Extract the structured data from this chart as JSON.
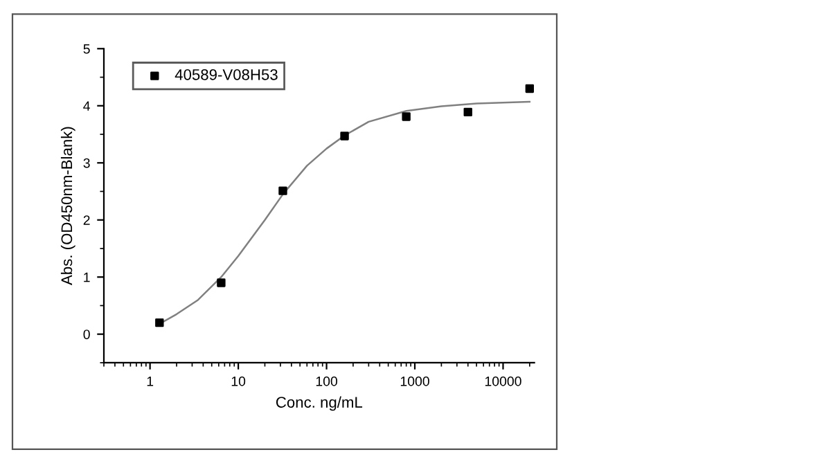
{
  "chart_data": {
    "type": "scatter",
    "xlabel": "Conc. ng/mL",
    "ylabel": "Abs. (OD450nm-Blank)",
    "log": "x",
    "marker": "square",
    "legend": "top left",
    "grid": false,
    "xlim": [
      0.3,
      22600
    ],
    "xticks": [
      1,
      10,
      100,
      1000,
      10000
    ],
    "ylim": [
      -0.5,
      5
    ],
    "yticks": [
      0,
      1,
      2,
      3,
      4,
      5
    ],
    "series": [
      {
        "name": "40589-V08H53",
        "color": "#000000",
        "x": [
          1.28,
          6.4,
          32,
          160,
          800,
          4000,
          20000
        ],
        "values": [
          0.2,
          0.9,
          2.51,
          3.47,
          3.81,
          3.89,
          4.3
        ]
      },
      {
        "type": "line",
        "color": "#808080",
        "marker": "none",
        "x": [
          1.28,
          2,
          3.5,
          6.4,
          10,
          20,
          32,
          60,
          100,
          160,
          300,
          800,
          2000,
          5000,
          20000
        ],
        "values": [
          0.18,
          0.35,
          0.6,
          1.0,
          1.37,
          2.0,
          2.45,
          2.95,
          3.25,
          3.48,
          3.72,
          3.91,
          3.99,
          4.04,
          4.07
        ]
      }
    ]
  }
}
